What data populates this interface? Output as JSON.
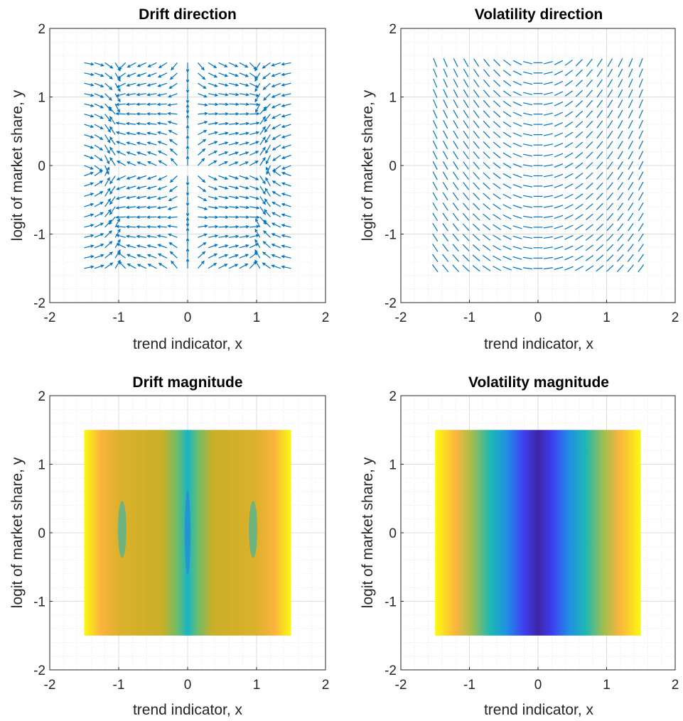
{
  "chart_data": [
    {
      "type": "quiver",
      "title": "Drift direction",
      "xlabel": "trend indicator, x",
      "ylabel": "logit of market share, y",
      "xlim": [
        -2,
        2
      ],
      "ylim": [
        -2,
        2
      ],
      "xticks": [
        "-2",
        "-1",
        "0",
        "1",
        "2"
      ],
      "yticks": [
        "-2",
        "-1",
        "0",
        "1",
        "2"
      ],
      "grid": true,
      "minor_grid": true,
      "field_domain": {
        "x": [
          -1.5,
          1.5
        ],
        "y": [
          -1.5,
          1.5
        ]
      },
      "arrows": true,
      "color": "#0072bd"
    },
    {
      "type": "quiver",
      "title": "Volatility direction",
      "xlabel": "trend indicator, x",
      "ylabel": "logit of market share, y",
      "xlim": [
        -2,
        2
      ],
      "ylim": [
        -2,
        2
      ],
      "xticks": [
        "-2",
        "-1",
        "0",
        "1",
        "2"
      ],
      "yticks": [
        "-2",
        "-1",
        "0",
        "1",
        "2"
      ],
      "grid": true,
      "minor_grid": true,
      "field_domain": {
        "x": [
          -1.5,
          1.5
        ],
        "y": [
          -1.5,
          1.5
        ]
      },
      "arrows": false,
      "color": "#0072bd"
    },
    {
      "type": "heatmap",
      "title": "Drift magnitude",
      "xlabel": "trend indicator, x",
      "ylabel": "logit of market share, y",
      "xlim": [
        -2,
        2
      ],
      "ylim": [
        -2,
        2
      ],
      "xticks": [
        "-2",
        "-1",
        "0",
        "1",
        "2"
      ],
      "yticks": [
        "-2",
        "-1",
        "0",
        "1",
        "2"
      ],
      "grid": true,
      "minor_grid": true,
      "field_domain": {
        "x": [
          -1.5,
          1.5
        ],
        "y": [
          -1.5,
          1.5
        ]
      },
      "colormap": "parula"
    },
    {
      "type": "heatmap",
      "title": "Volatility magnitude",
      "xlabel": "trend indicator, x",
      "ylabel": "logit of market share, y",
      "xlim": [
        -2,
        2
      ],
      "ylim": [
        -2,
        2
      ],
      "xticks": [
        "-2",
        "-1",
        "0",
        "1",
        "2"
      ],
      "yticks": [
        "-2",
        "-1",
        "0",
        "1",
        "2"
      ],
      "grid": true,
      "minor_grid": true,
      "field_domain": {
        "x": [
          -1.5,
          1.5
        ],
        "y": [
          -1.5,
          1.5
        ]
      },
      "colormap": "parula"
    }
  ]
}
